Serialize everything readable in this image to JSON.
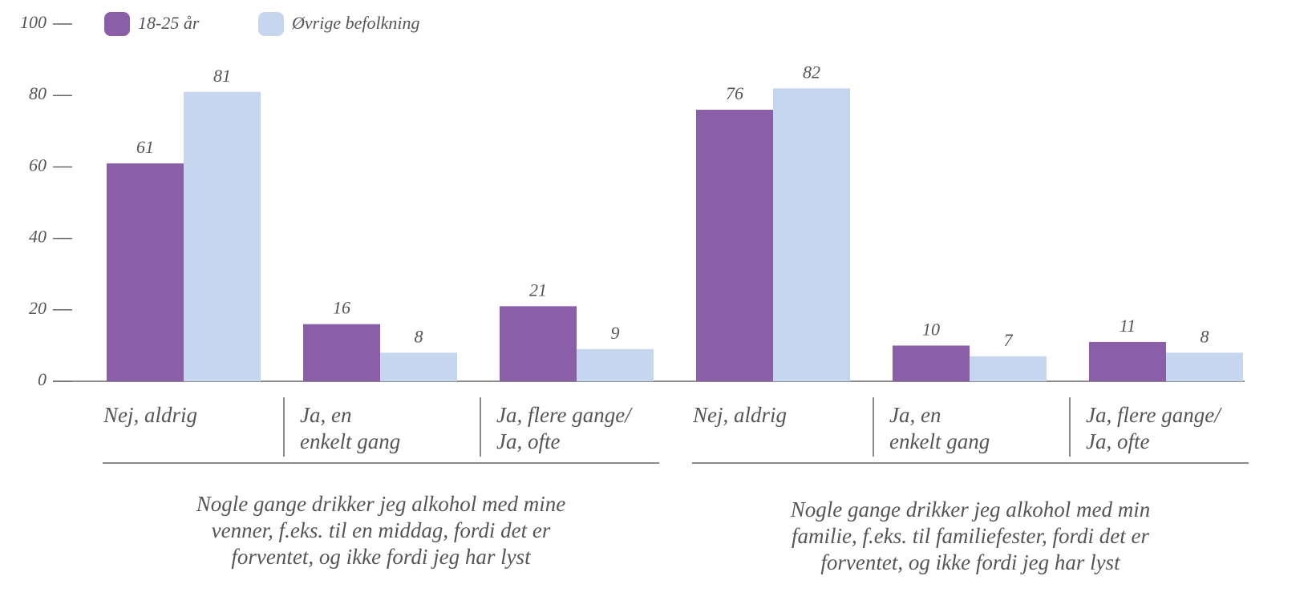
{
  "chart_data": {
    "type": "bar",
    "groups": [
      {
        "label": "Nogle gange drikker jeg alkohol med mine\nvenner, f.eks. til en middag, fordi det er\nforventet, og ikke fordi jeg har lyst",
        "categories": [
          "Nej, aldrig",
          "Ja, en\nenkelt gang",
          "Ja, flere gange/\nJa, ofte"
        ]
      },
      {
        "label": "Nogle gange drikker jeg alkohol med min\nfamilie, f.eks. til familiefester, fordi det er\nforventet, og ikke fordi jeg har lyst",
        "categories": [
          "Nej, aldrig",
          "Ja, en\nenkelt gang",
          "Ja, flere gange/\nJa, ofte"
        ]
      }
    ],
    "series": [
      {
        "name": "18-25 år",
        "color": "#8b5fa8",
        "values": [
          61,
          16,
          21,
          76,
          10,
          11
        ]
      },
      {
        "name": "Øvrige befolkning",
        "color": "#c6d6ef",
        "values": [
          81,
          8,
          9,
          82,
          7,
          8
        ]
      }
    ],
    "ylim": [
      0,
      100
    ],
    "yticks": [
      0,
      20,
      40,
      60,
      80,
      100
    ],
    "legend": "top-left"
  }
}
